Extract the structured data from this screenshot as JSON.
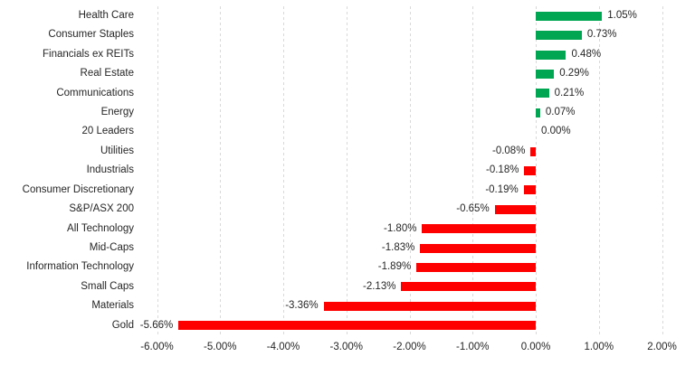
{
  "chart_data": {
    "type": "bar",
    "orientation": "horizontal",
    "title": "",
    "xlabel": "",
    "ylabel": "",
    "categories": [
      "Health Care",
      "Consumer Staples",
      "Financials ex REITs",
      "Real Estate",
      "Communications",
      "Energy",
      "20 Leaders",
      "Utilities",
      "Industrials",
      "Consumer Discretionary",
      "S&P/ASX 200",
      "All Technology",
      "Mid-Caps",
      "Information Technology",
      "Small Caps",
      "Materials",
      "Gold"
    ],
    "values": [
      1.05,
      0.73,
      0.48,
      0.29,
      0.21,
      0.07,
      0.0,
      -0.08,
      -0.18,
      -0.19,
      -0.65,
      -1.8,
      -1.83,
      -1.89,
      -2.13,
      -3.36,
      -5.66
    ],
    "value_labels": [
      "1.05%",
      "0.73%",
      "0.48%",
      "0.29%",
      "0.21%",
      "0.07%",
      "0.00%",
      "-0.08%",
      "-0.18%",
      "-0.19%",
      "-0.65%",
      "-1.80%",
      "-1.83%",
      "-1.89%",
      "-2.13%",
      "-3.36%",
      "-5.66%"
    ],
    "xlim": [
      -6,
      2
    ],
    "x_tick_values": [
      -6,
      -5,
      -4,
      -3,
      -2,
      -1,
      0,
      1,
      2
    ],
    "x_tick_labels": [
      "-6.00%",
      "-5.00%",
      "-4.00%",
      "-3.00%",
      "-2.00%",
      "-1.00%",
      "0.00%",
      "1.00%",
      "2.00%"
    ],
    "grid": "vertical-dashed",
    "legend": "none",
    "colors": {
      "positive_bar": "#00A651",
      "negative_bar": "#FF0000",
      "gridline": "#D9D9D9",
      "text": "#262626",
      "background": "#FFFFFF"
    }
  }
}
